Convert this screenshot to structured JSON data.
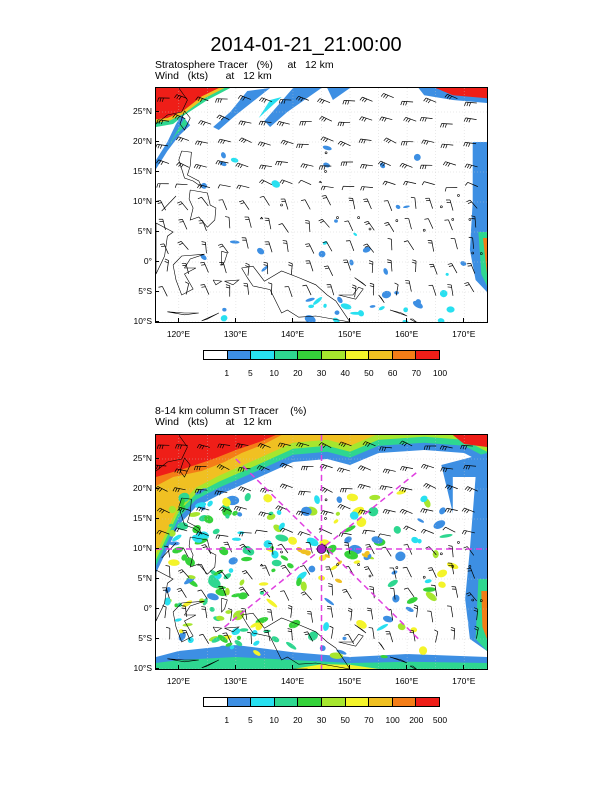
{
  "title": "2014-01-21_21:00:00",
  "panels": [
    {
      "id": "top",
      "subtitle_line1": "Stratosphere Tracer   (%)     at   12 km",
      "subtitle_line2": "Wind   (kts)      at   12 km",
      "lat_labels": [
        "25°N",
        "20°N",
        "15°N",
        "10°N",
        "5°N",
        "0°",
        "5°S",
        "10°S"
      ],
      "lon_labels": [
        "120°E",
        "130°E",
        "140°E",
        "150°E",
        "160°E",
        "170°E"
      ],
      "colorbar_labels": [
        "1",
        "5",
        "10",
        "20",
        "30",
        "40",
        "50",
        "60",
        "70",
        "100"
      ],
      "colorbar_colors": [
        "#ffffff",
        "#3d8fe3",
        "#28e0f0",
        "#2ed790",
        "#35d23a",
        "#a6e62e",
        "#f4f42a",
        "#f0c022",
        "#f47d17",
        "#ef1e18"
      ]
    },
    {
      "id": "bottom",
      "subtitle_line1": "8-14 km column ST Tracer    (%)",
      "subtitle_line2": "Wind   (kts)      at   12 km",
      "lat_labels": [
        "25°N",
        "20°N",
        "15°N",
        "10°N",
        "5°N",
        "0°",
        "5°S",
        "10°S"
      ],
      "lon_labels": [
        "120°E",
        "130°E",
        "140°E",
        "150°E",
        "160°E",
        "170°E"
      ],
      "colorbar_labels": [
        "1",
        "5",
        "10",
        "20",
        "30",
        "50",
        "70",
        "100",
        "200",
        "500"
      ],
      "colorbar_colors": [
        "#ffffff",
        "#3d8fe3",
        "#28e0f0",
        "#2ed790",
        "#35d23a",
        "#a6e62e",
        "#f4f42a",
        "#f0c022",
        "#f47d17",
        "#ef1e18"
      ]
    }
  ],
  "map_extent": {
    "lon_min": 116,
    "lon_max": 174,
    "lat_min": -10,
    "lat_max": 29
  },
  "storm_center": {
    "lon": 145,
    "lat": 10
  },
  "colors": {
    "land_outline": "#000000",
    "grid": "#c8c8c8",
    "wind_barb": "#000000",
    "cross_section_line": "#e040e0",
    "storm_marker": "#a020c0"
  }
}
